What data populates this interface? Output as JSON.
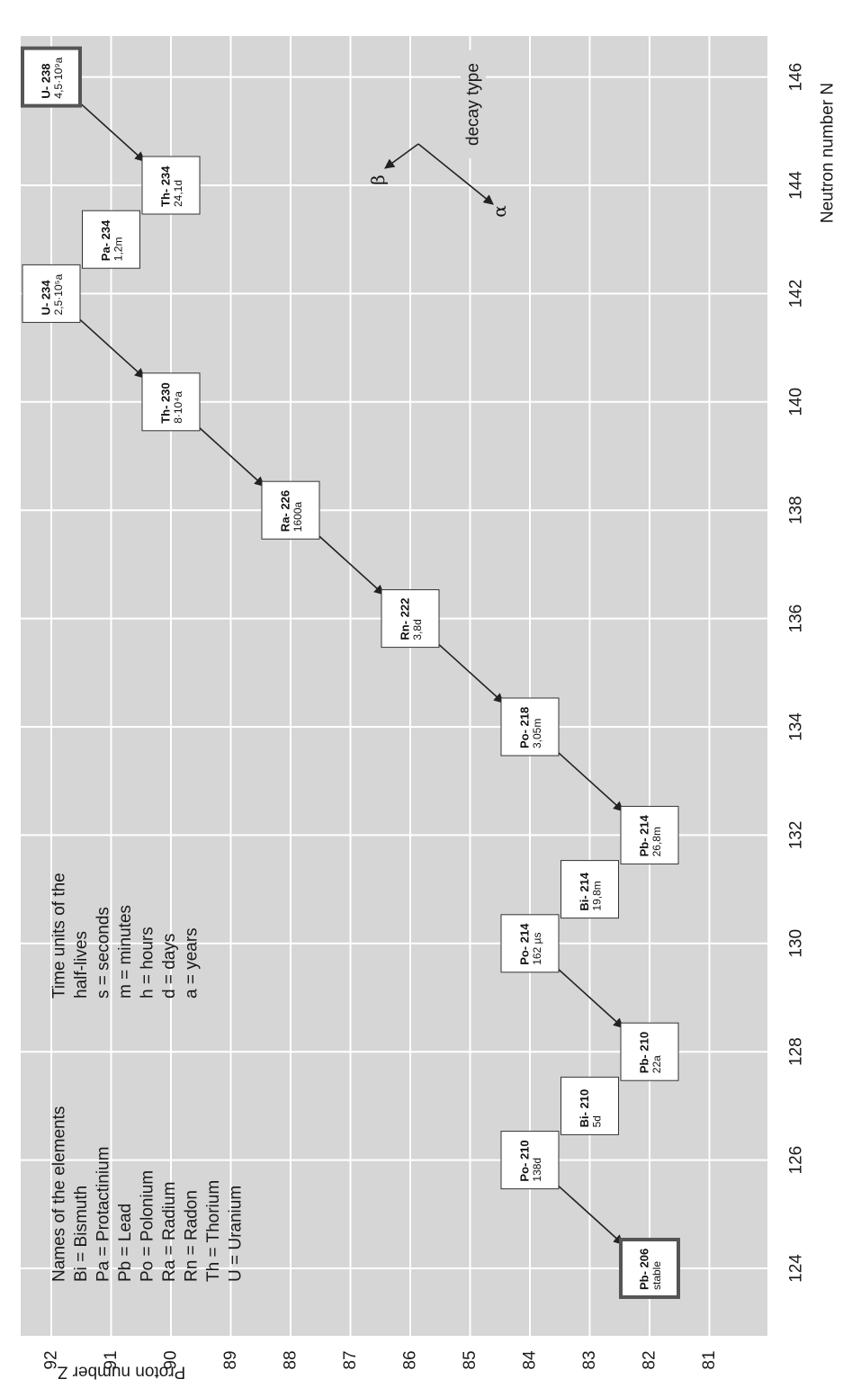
{
  "chart_data": {
    "type": "decay-chain",
    "xlabel": "Neutron number N",
    "ylabel": "Proton number Z",
    "xlim": [
      123.3,
      146.9
    ],
    "ylim": [
      80.3,
      92.7
    ],
    "x_ticks": [
      124,
      126,
      128,
      130,
      132,
      134,
      136,
      138,
      140,
      142,
      144,
      146
    ],
    "y_ticks": [
      81,
      82,
      83,
      84,
      85,
      86,
      87,
      88,
      89,
      90,
      91,
      92
    ],
    "grid": true,
    "nuclides": [
      {
        "symbol": "U- 238",
        "halflife": "4,5·10⁹a",
        "N": 146,
        "Z": 92,
        "emphasis": true
      },
      {
        "symbol": "Th- 234",
        "halflife": "24,1d",
        "N": 144,
        "Z": 90,
        "emphasis": false
      },
      {
        "symbol": "Pa- 234",
        "halflife": "1,2m",
        "N": 143,
        "Z": 91,
        "emphasis": false
      },
      {
        "symbol": "U- 234",
        "halflife": "2,5·10⁵a",
        "N": 142,
        "Z": 92,
        "emphasis": false
      },
      {
        "symbol": "Th- 230",
        "halflife": "8·10⁴a",
        "N": 140,
        "Z": 90,
        "emphasis": false
      },
      {
        "symbol": "Ra- 226",
        "halflife": "1600a",
        "N": 138,
        "Z": 88,
        "emphasis": false
      },
      {
        "symbol": "Rn- 222",
        "halflife": "3,8d",
        "N": 136,
        "Z": 86,
        "emphasis": false
      },
      {
        "symbol": "Po- 218",
        "halflife": "3,05m",
        "N": 134,
        "Z": 84,
        "emphasis": false
      },
      {
        "symbol": "Pb- 214",
        "halflife": "26,8m",
        "N": 132,
        "Z": 82,
        "emphasis": false
      },
      {
        "symbol": "Bi- 214",
        "halflife": "19,8m",
        "N": 131,
        "Z": 83,
        "emphasis": false
      },
      {
        "symbol": "Po- 214",
        "halflife": "162 µs",
        "N": 130,
        "Z": 84,
        "emphasis": false
      },
      {
        "symbol": "Pb- 210",
        "halflife": "22a",
        "N": 128,
        "Z": 82,
        "emphasis": false
      },
      {
        "symbol": "Bi- 210",
        "halflife": "5d",
        "N": 127,
        "Z": 83,
        "emphasis": false
      },
      {
        "symbol": "Po- 210",
        "halflife": "138d",
        "N": 126,
        "Z": 84,
        "emphasis": false
      },
      {
        "symbol": "Pb- 206",
        "halflife": "stable",
        "N": 124,
        "Z": 82,
        "emphasis": true
      }
    ],
    "alpha_arrows": [
      {
        "from": [
          146,
          92
        ],
        "to": [
          144,
          90
        ]
      },
      {
        "from": [
          142,
          92
        ],
        "to": [
          140,
          90
        ]
      },
      {
        "from": [
          140,
          90
        ],
        "to": [
          138,
          88
        ]
      },
      {
        "from": [
          138,
          88
        ],
        "to": [
          136,
          86
        ]
      },
      {
        "from": [
          136,
          86
        ],
        "to": [
          134,
          84
        ]
      },
      {
        "from": [
          134,
          84
        ],
        "to": [
          132,
          82
        ]
      },
      {
        "from": [
          130,
          84
        ],
        "to": [
          128,
          82
        ]
      },
      {
        "from": [
          126,
          84
        ],
        "to": [
          124,
          82
        ]
      }
    ],
    "decay_key": {
      "title": "decay type",
      "beta": "β",
      "alpha": "α"
    },
    "legend_elements": {
      "title": "Names of the elements",
      "items": [
        "Bi = Bismuth",
        "Pa = Protactinium",
        "Pb = Lead",
        "Po = Polonium",
        "Ra = Radium",
        "Rn = Radon",
        "Th = Thorium",
        "U  = Uranium"
      ]
    },
    "legend_time": {
      "title_lines": [
        "Time units of the",
        "half-lives"
      ],
      "items": [
        "s  =  seconds",
        "m  =  minutes",
        "h  =  hours",
        "d  =  days",
        "a  =  years"
      ]
    },
    "colors": {
      "background": "#d6d6d6",
      "grid": "#ffffff",
      "box": "#ffffff",
      "box_border": "#333333",
      "arrow": "#222222"
    }
  }
}
